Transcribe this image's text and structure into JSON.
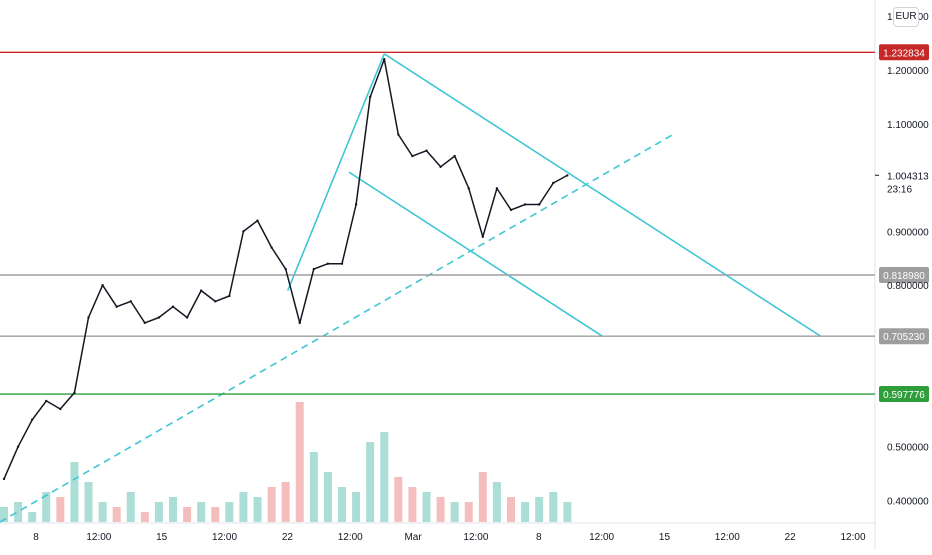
{
  "currency": "EUR",
  "price_axis_ticks": [
    {
      "label": "1.300000",
      "value": 1.3
    },
    {
      "label": "1.200000",
      "value": 1.2
    },
    {
      "label": "1.100000",
      "value": 1.1
    },
    {
      "label": "0.900000",
      "value": 0.9
    },
    {
      "label": "0.800000",
      "value": 0.8
    },
    {
      "label": "0.500000",
      "value": 0.5
    },
    {
      "label": "0.400000",
      "value": 0.4
    }
  ],
  "time_axis_ticks": [
    "8",
    "12:00",
    "15",
    "12:00",
    "22",
    "12:00",
    "Mar",
    "12:00",
    "8",
    "12:00",
    "15",
    "12:00",
    "22",
    "12:00"
  ],
  "levels": [
    {
      "label": "1.232834",
      "value": 1.232834,
      "color": "#c62828"
    },
    {
      "label": "0.818980",
      "value": 0.81898,
      "color": "#9e9e9e"
    },
    {
      "label": "0.705230",
      "value": 0.70523,
      "color": "#9e9e9e"
    },
    {
      "label": "0.597776",
      "value": 0.597776,
      "color": "#2e9e3a"
    }
  ],
  "last_price": {
    "label": "1.004313",
    "value": 1.004313,
    "countdown": "23:16"
  },
  "colors": {
    "candle": "#131722",
    "trendline": "#3fc6d5",
    "vol_up": "#8fd3c8",
    "vol_down": "#f2a8a8"
  },
  "chart_data": {
    "type": "line",
    "series": [
      {
        "values": [
          {
            "x": 0,
            "y": 0.44
          },
          {
            "x": 1,
            "y": 0.5
          },
          {
            "x": 2,
            "y": 0.55
          },
          {
            "x": 3,
            "y": 0.585
          },
          {
            "x": 4,
            "y": 0.57
          },
          {
            "x": 5,
            "y": 0.6
          },
          {
            "x": 6,
            "y": 0.74
          },
          {
            "x": 7,
            "y": 0.8
          },
          {
            "x": 8,
            "y": 0.76
          },
          {
            "x": 9,
            "y": 0.77
          },
          {
            "x": 10,
            "y": 0.73
          },
          {
            "x": 11,
            "y": 0.74
          },
          {
            "x": 12,
            "y": 0.76
          },
          {
            "x": 13,
            "y": 0.74
          },
          {
            "x": 14,
            "y": 0.79
          },
          {
            "x": 15,
            "y": 0.77
          },
          {
            "x": 16,
            "y": 0.78
          },
          {
            "x": 17,
            "y": 0.9
          },
          {
            "x": 18,
            "y": 0.92
          },
          {
            "x": 19,
            "y": 0.87
          },
          {
            "x": 20,
            "y": 0.83
          },
          {
            "x": 21,
            "y": 0.73
          },
          {
            "x": 22,
            "y": 0.83
          },
          {
            "x": 23,
            "y": 0.84
          },
          {
            "x": 24,
            "y": 0.84
          },
          {
            "x": 25,
            "y": 0.95
          },
          {
            "x": 26,
            "y": 1.15
          },
          {
            "x": 27,
            "y": 1.22
          },
          {
            "x": 28,
            "y": 1.08
          },
          {
            "x": 29,
            "y": 1.04
          },
          {
            "x": 30,
            "y": 1.05
          },
          {
            "x": 31,
            "y": 1.02
          },
          {
            "x": 32,
            "y": 1.04
          },
          {
            "x": 33,
            "y": 0.98
          },
          {
            "x": 34,
            "y": 0.89
          },
          {
            "x": 35,
            "y": 0.98
          },
          {
            "x": 36,
            "y": 0.94
          },
          {
            "x": 37,
            "y": 0.95
          },
          {
            "x": 38,
            "y": 0.95
          },
          {
            "x": 39,
            "y": 0.99
          },
          {
            "x": 40,
            "y": 1.004
          }
        ]
      }
    ],
    "x_range": [
      0,
      60
    ],
    "y_range": [
      0.36,
      1.33
    ],
    "volume": [
      3,
      4,
      2,
      6,
      5,
      12,
      8,
      4,
      3,
      6,
      2,
      4,
      5,
      3,
      4,
      3,
      4,
      6,
      5,
      7,
      8,
      24,
      14,
      10,
      7,
      6,
      16,
      18,
      9,
      7,
      6,
      5,
      4,
      4,
      10,
      8,
      5,
      4,
      5,
      6,
      4
    ]
  }
}
